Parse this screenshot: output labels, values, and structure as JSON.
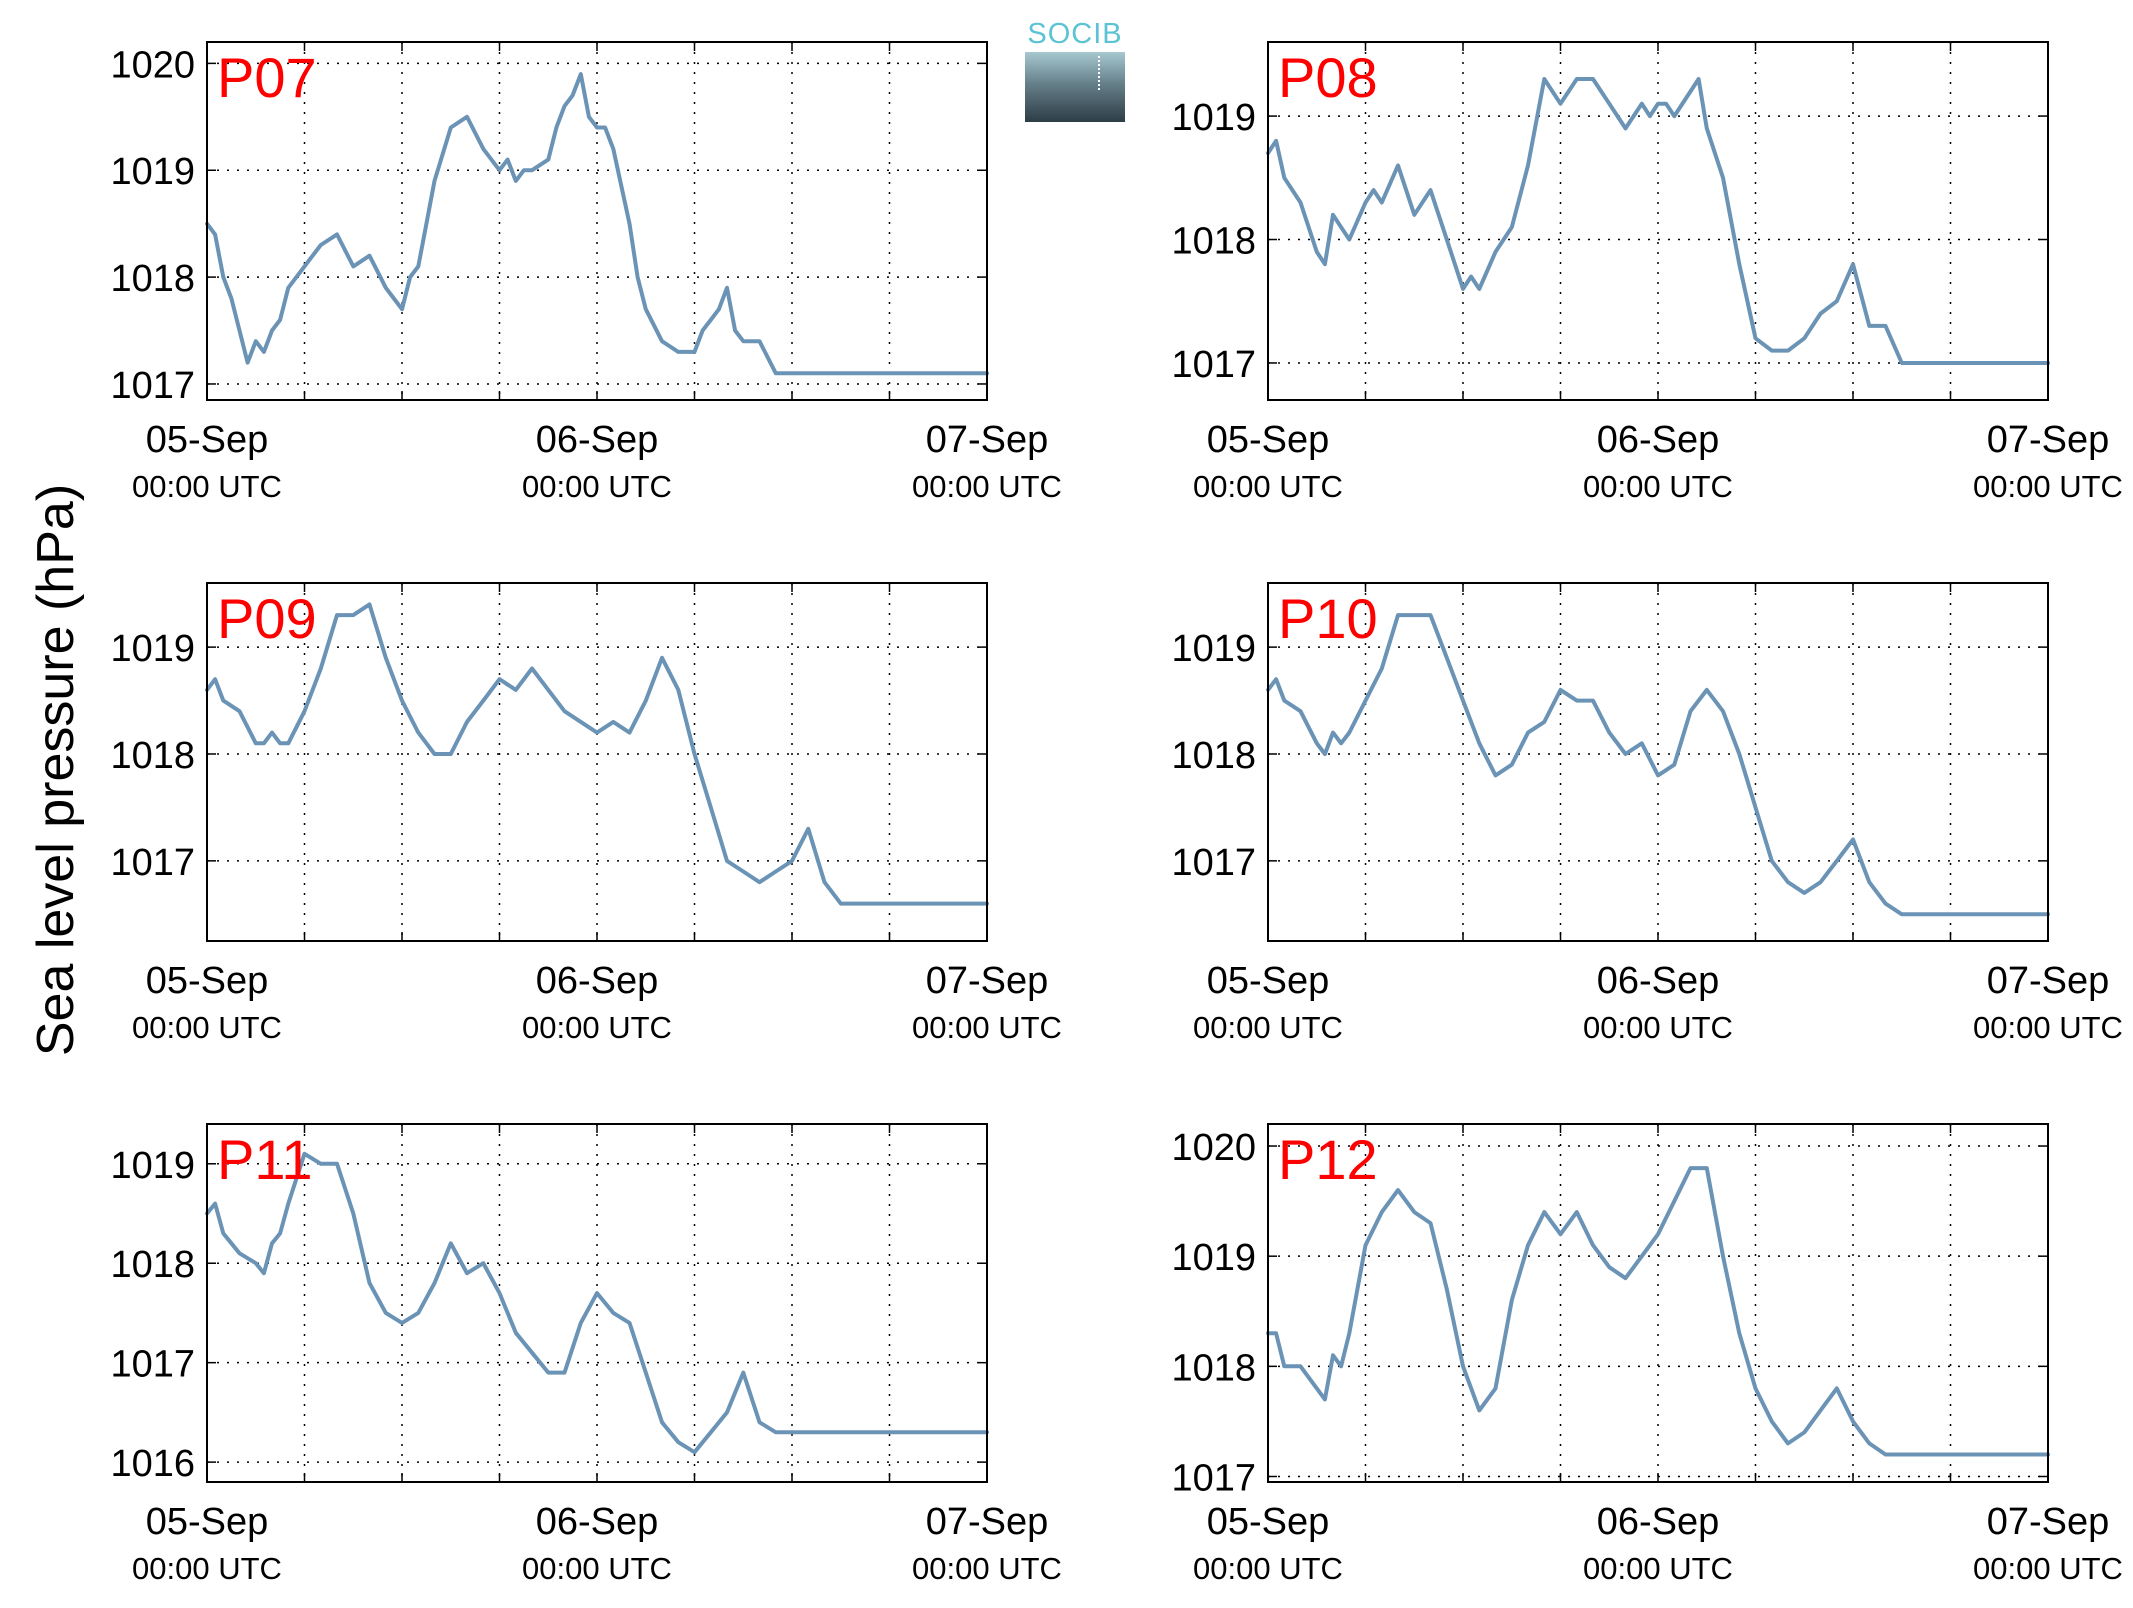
{
  "figure": {
    "ylabel": "Sea level pressure (hPa)",
    "logo_text": "SOCIB",
    "line_color": "#6b93b5",
    "station_label_color": "#ff0000"
  },
  "chart_data": [
    {
      "type": "line",
      "name": "P07",
      "ylim": [
        1016.85,
        1020.2
      ],
      "yticks": [
        1017,
        1018,
        1019,
        1020
      ],
      "xlim": [
        0,
        48
      ],
      "xticks": [
        0,
        24,
        48
      ],
      "xticklabels": [
        [
          "05-Sep",
          "00:00 UTC"
        ],
        [
          "06-Sep",
          "00:00 UTC"
        ],
        [
          "07-Sep",
          "00:00 UTC"
        ]
      ],
      "grid": true,
      "x": [
        0,
        0.5,
        1,
        1.5,
        2,
        2.5,
        3,
        3.5,
        4,
        4.5,
        5,
        5.5,
        6,
        6.5,
        7,
        8,
        9,
        10,
        11,
        11.5,
        12,
        12.5,
        13,
        13.5,
        14,
        15,
        16,
        17,
        18,
        18.5,
        19,
        19.5,
        20,
        21,
        21.5,
        22,
        22.5,
        23,
        23.5,
        24,
        24.5,
        25,
        26,
        26.5,
        27,
        28,
        29,
        30,
        30.5,
        31,
        31.5,
        32,
        32.5,
        33,
        34,
        35,
        36,
        37,
        38,
        38.5,
        39,
        40,
        40.5,
        41,
        41.5,
        42,
        42.5,
        43,
        43.5,
        44,
        45,
        45.5,
        46,
        46.5,
        47,
        47.5,
        48
      ],
      "values": [
        1018.5,
        1018.4,
        1018.0,
        1017.8,
        1017.5,
        1017.2,
        1017.4,
        1017.3,
        1017.5,
        1017.6,
        1017.9,
        1018.0,
        1018.1,
        1018.2,
        1018.3,
        1018.4,
        1018.1,
        1018.2,
        1017.9,
        1017.8,
        1017.7,
        1018.0,
        1018.1,
        1018.5,
        1018.9,
        1019.4,
        1019.5,
        1019.2,
        1019.0,
        1019.1,
        1018.9,
        1019.0,
        1019.0,
        1019.1,
        1019.4,
        1019.6,
        1019.7,
        1019.9,
        1019.5,
        1019.4,
        1019.4,
        1019.2,
        1018.5,
        1018.0,
        1017.7,
        1017.4,
        1017.3,
        1017.3,
        1017.5,
        1017.6,
        1017.7,
        1017.9,
        1017.5,
        1017.4,
        1017.4,
        1017.1,
        1017.1,
        1017.1,
        1017.1,
        1017.1,
        1017.1,
        1017.1,
        1017.1,
        1017.1,
        1017.1,
        1017.1,
        1017.1,
        1017.1,
        1017.1,
        1017.1,
        1017.1,
        1017.1,
        1017.1,
        1017.1,
        1017.1,
        1017.1,
        1017.1
      ]
    },
    {
      "type": "line",
      "name": "P08",
      "ylim": [
        1016.7,
        1019.6
      ],
      "yticks": [
        1017,
        1018,
        1019
      ],
      "xlim": [
        0,
        48
      ],
      "xticks": [
        0,
        24,
        48
      ],
      "xticklabels": [
        [
          "05-Sep",
          "00:00 UTC"
        ],
        [
          "06-Sep",
          "00:00 UTC"
        ],
        [
          "07-Sep",
          "00:00 UTC"
        ]
      ],
      "grid": true,
      "x": [
        0,
        0.5,
        1,
        2,
        3,
        3.5,
        4,
        4.5,
        5,
        6,
        6.5,
        7,
        8,
        9,
        10,
        11,
        12,
        12.5,
        13,
        14,
        15,
        16,
        17,
        18,
        19,
        20,
        21,
        22,
        22.5,
        23,
        23.5,
        24,
        24.5,
        25,
        26,
        26.5,
        27,
        28,
        29,
        30,
        31,
        32,
        33,
        34,
        35,
        36,
        37,
        38,
        39,
        40,
        41,
        42,
        43,
        44,
        44.5,
        45,
        45.5,
        46,
        46.5,
        47,
        48
      ],
      "values": [
        1018.7,
        1018.8,
        1018.5,
        1018.3,
        1017.9,
        1017.8,
        1018.2,
        1018.1,
        1018.0,
        1018.3,
        1018.4,
        1018.3,
        1018.6,
        1018.2,
        1018.4,
        1018.0,
        1017.6,
        1017.7,
        1017.6,
        1017.9,
        1018.1,
        1018.6,
        1019.3,
        1019.1,
        1019.3,
        1019.3,
        1019.1,
        1018.9,
        1019.0,
        1019.1,
        1019.0,
        1019.1,
        1019.1,
        1019.0,
        1019.2,
        1019.3,
        1018.9,
        1018.5,
        1017.8,
        1017.2,
        1017.1,
        1017.1,
        1017.2,
        1017.4,
        1017.5,
        1017.8,
        1017.3,
        1017.3,
        1017.0,
        1017.0,
        1017.0,
        1017.0,
        1017.0,
        1017.0,
        1017.0,
        1017.0,
        1017.0,
        1017.0,
        1017.0,
        1017.0,
        1017.0
      ]
    },
    {
      "type": "line",
      "name": "P09",
      "ylim": [
        1016.25,
        1019.6
      ],
      "yticks": [
        1017,
        1018,
        1019
      ],
      "xlim": [
        0,
        48
      ],
      "xticks": [
        0,
        24,
        48
      ],
      "xticklabels": [
        [
          "05-Sep",
          "00:00 UTC"
        ],
        [
          "06-Sep",
          "00:00 UTC"
        ],
        [
          "07-Sep",
          "00:00 UTC"
        ]
      ],
      "grid": true,
      "x": [
        0,
        0.5,
        1,
        2,
        3,
        3.5,
        4,
        4.5,
        5,
        6,
        7,
        8,
        9,
        10,
        11,
        12,
        13,
        14,
        15,
        16,
        17,
        18,
        19,
        20,
        21,
        22,
        23,
        24,
        25,
        26,
        27,
        28,
        29,
        30,
        31,
        32,
        33,
        34,
        35,
        36,
        37,
        38,
        39,
        40,
        41,
        42,
        43,
        44,
        45,
        46,
        47,
        48
      ],
      "values": [
        1018.6,
        1018.7,
        1018.5,
        1018.4,
        1018.1,
        1018.1,
        1018.2,
        1018.1,
        1018.1,
        1018.4,
        1018.8,
        1019.3,
        1019.3,
        1019.4,
        1018.9,
        1018.5,
        1018.2,
        1018.0,
        1018.0,
        1018.3,
        1018.5,
        1018.7,
        1018.6,
        1018.8,
        1018.6,
        1018.4,
        1018.3,
        1018.2,
        1018.3,
        1018.2,
        1018.5,
        1018.9,
        1018.6,
        1018.0,
        1017.5,
        1017.0,
        1016.9,
        1016.8,
        1016.9,
        1017.0,
        1017.3,
        1016.8,
        1016.6,
        1016.6,
        1016.6,
        1016.6,
        1016.6,
        1016.6,
        1016.6,
        1016.6,
        1016.6,
        1016.6
      ]
    },
    {
      "type": "line",
      "name": "P10",
      "ylim": [
        1016.25,
        1019.6
      ],
      "yticks": [
        1017,
        1018,
        1019
      ],
      "xlim": [
        0,
        48
      ],
      "xticks": [
        0,
        24,
        48
      ],
      "xticklabels": [
        [
          "05-Sep",
          "00:00 UTC"
        ],
        [
          "06-Sep",
          "00:00 UTC"
        ],
        [
          "07-Sep",
          "00:00 UTC"
        ]
      ],
      "grid": true,
      "x": [
        0,
        0.5,
        1,
        2,
        3,
        3.5,
        4,
        4.5,
        5,
        6,
        7,
        8,
        9,
        10,
        11,
        12,
        13,
        14,
        15,
        16,
        17,
        18,
        19,
        20,
        21,
        22,
        23,
        24,
        25,
        26,
        27,
        28,
        29,
        30,
        31,
        32,
        33,
        34,
        35,
        36,
        37,
        38,
        39,
        40,
        41,
        42,
        43,
        44,
        45,
        46,
        47,
        48
      ],
      "values": [
        1018.6,
        1018.7,
        1018.5,
        1018.4,
        1018.1,
        1018.0,
        1018.2,
        1018.1,
        1018.2,
        1018.5,
        1018.8,
        1019.3,
        1019.3,
        1019.3,
        1018.9,
        1018.5,
        1018.1,
        1017.8,
        1017.9,
        1018.2,
        1018.3,
        1018.6,
        1018.5,
        1018.5,
        1018.2,
        1018.0,
        1018.1,
        1017.8,
        1017.9,
        1018.4,
        1018.6,
        1018.4,
        1018.0,
        1017.5,
        1017.0,
        1016.8,
        1016.7,
        1016.8,
        1017.0,
        1017.2,
        1016.8,
        1016.6,
        1016.5,
        1016.5,
        1016.5,
        1016.5,
        1016.5,
        1016.5,
        1016.5,
        1016.5,
        1016.5,
        1016.5
      ]
    },
    {
      "type": "line",
      "name": "P11",
      "ylim": [
        1015.8,
        1019.4
      ],
      "yticks": [
        1016,
        1017,
        1018,
        1019
      ],
      "xlim": [
        0,
        48
      ],
      "xticks": [
        0,
        24,
        48
      ],
      "xticklabels": [
        [
          "05-Sep",
          "00:00 UTC"
        ],
        [
          "06-Sep",
          "00:00 UTC"
        ],
        [
          "07-Sep",
          "00:00 UTC"
        ]
      ],
      "grid": true,
      "x": [
        0,
        0.5,
        1,
        2,
        3,
        3.5,
        4,
        4.5,
        5,
        6,
        7,
        8,
        9,
        10,
        11,
        12,
        13,
        14,
        15,
        16,
        17,
        18,
        19,
        20,
        21,
        22,
        23,
        24,
        25,
        26,
        27,
        28,
        29,
        30,
        31,
        32,
        33,
        34,
        35,
        36,
        37,
        38,
        39,
        40,
        41,
        42,
        43,
        44,
        45,
        46,
        47,
        48
      ],
      "values": [
        1018.5,
        1018.6,
        1018.3,
        1018.1,
        1018.0,
        1017.9,
        1018.2,
        1018.3,
        1018.6,
        1019.1,
        1019.0,
        1019.0,
        1018.5,
        1017.8,
        1017.5,
        1017.4,
        1017.5,
        1017.8,
        1018.2,
        1017.9,
        1018.0,
        1017.7,
        1017.3,
        1017.1,
        1016.9,
        1016.9,
        1017.4,
        1017.7,
        1017.5,
        1017.4,
        1016.9,
        1016.4,
        1016.2,
        1016.1,
        1016.3,
        1016.5,
        1016.9,
        1016.4,
        1016.3,
        1016.3,
        1016.3,
        1016.3,
        1016.3,
        1016.3,
        1016.3,
        1016.3,
        1016.3,
        1016.3,
        1016.3,
        1016.3,
        1016.3,
        1016.3
      ]
    },
    {
      "type": "line",
      "name": "P12",
      "ylim": [
        1016.95,
        1020.2
      ],
      "yticks": [
        1017,
        1018,
        1019,
        1020
      ],
      "xlim": [
        0,
        48
      ],
      "xticks": [
        0,
        24,
        48
      ],
      "xticklabels": [
        [
          "05-Sep",
          "00:00 UTC"
        ],
        [
          "06-Sep",
          "00:00 UTC"
        ],
        [
          "07-Sep",
          "00:00 UTC"
        ]
      ],
      "grid": true,
      "x": [
        0,
        0.5,
        1,
        2,
        3,
        3.5,
        4,
        4.5,
        5,
        6,
        7,
        8,
        9,
        10,
        11,
        12,
        13,
        14,
        15,
        16,
        17,
        18,
        19,
        20,
        21,
        22,
        23,
        24,
        25,
        26,
        27,
        28,
        29,
        30,
        31,
        32,
        33,
        34,
        35,
        36,
        37,
        38,
        39,
        40,
        41,
        42,
        43,
        44,
        45,
        46,
        47,
        48
      ],
      "values": [
        1018.3,
        1018.3,
        1018.0,
        1018.0,
        1017.8,
        1017.7,
        1018.1,
        1018.0,
        1018.3,
        1019.1,
        1019.4,
        1019.6,
        1019.4,
        1019.3,
        1018.7,
        1018.0,
        1017.6,
        1017.8,
        1018.6,
        1019.1,
        1019.4,
        1019.2,
        1019.4,
        1019.1,
        1018.9,
        1018.8,
        1019.0,
        1019.2,
        1019.5,
        1019.8,
        1019.8,
        1019.0,
        1018.3,
        1017.8,
        1017.5,
        1017.3,
        1017.4,
        1017.6,
        1017.8,
        1017.5,
        1017.3,
        1017.2,
        1017.2,
        1017.2,
        1017.2,
        1017.2,
        1017.2,
        1017.2,
        1017.2,
        1017.2,
        1017.2,
        1017.2
      ]
    }
  ]
}
